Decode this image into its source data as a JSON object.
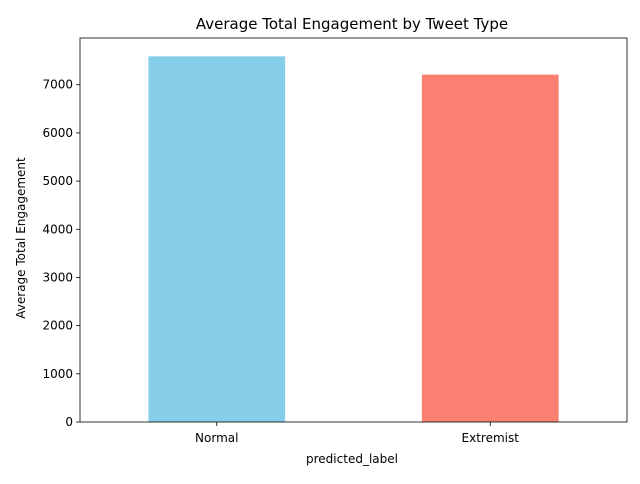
{
  "chart_data": {
    "type": "bar",
    "title": "Average Total Engagement by Tweet Type",
    "xlabel": "predicted_label",
    "ylabel": "Average Total Engagement",
    "categories": [
      "Normal",
      "Extremist"
    ],
    "values": [
      7590,
      7210
    ],
    "colors": [
      "#87ceeb",
      "#fa8072"
    ],
    "ylim": [
      0,
      7970
    ],
    "yticks": [
      0,
      1000,
      2000,
      3000,
      4000,
      5000,
      6000,
      7000
    ],
    "grid": false,
    "legend": "none"
  }
}
